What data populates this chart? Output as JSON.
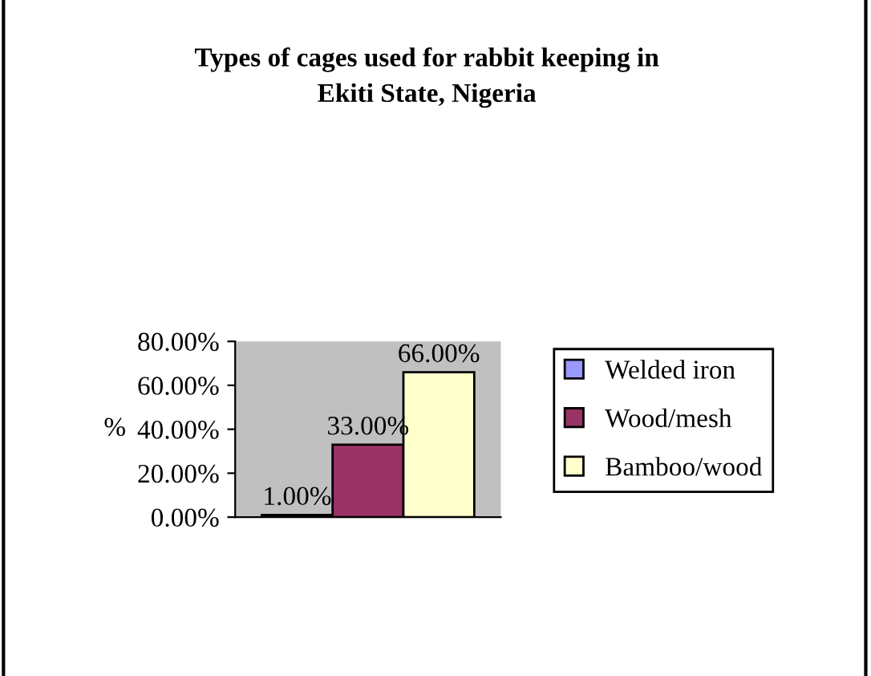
{
  "chart_data": {
    "type": "bar",
    "title": "Types of cages used for rabbit keeping in\nEkiti State, Nigeria",
    "ylabel": "%",
    "categories": [
      null
    ],
    "series": [
      {
        "name": "Welded iron",
        "color": "#9999ff",
        "values": [
          1
        ],
        "value_labels": [
          "1.00%"
        ]
      },
      {
        "name": "Wood/mesh",
        "color": "#993366",
        "values": [
          33
        ],
        "value_labels": [
          "33.00%"
        ]
      },
      {
        "name": "Bamboo/wood",
        "color": "#ffffcc",
        "values": [
          66
        ],
        "value_labels": [
          "66.00%"
        ]
      }
    ],
    "ylim": [
      0,
      80
    ],
    "yticks": [
      {
        "value": 0,
        "label": "0.00%"
      },
      {
        "value": 20,
        "label": "20.00%"
      },
      {
        "value": 40,
        "label": "40.00%"
      },
      {
        "value": 60,
        "label": "60.00%"
      },
      {
        "value": 80,
        "label": "80.00%"
      }
    ],
    "grid": false,
    "legend": "right"
  }
}
